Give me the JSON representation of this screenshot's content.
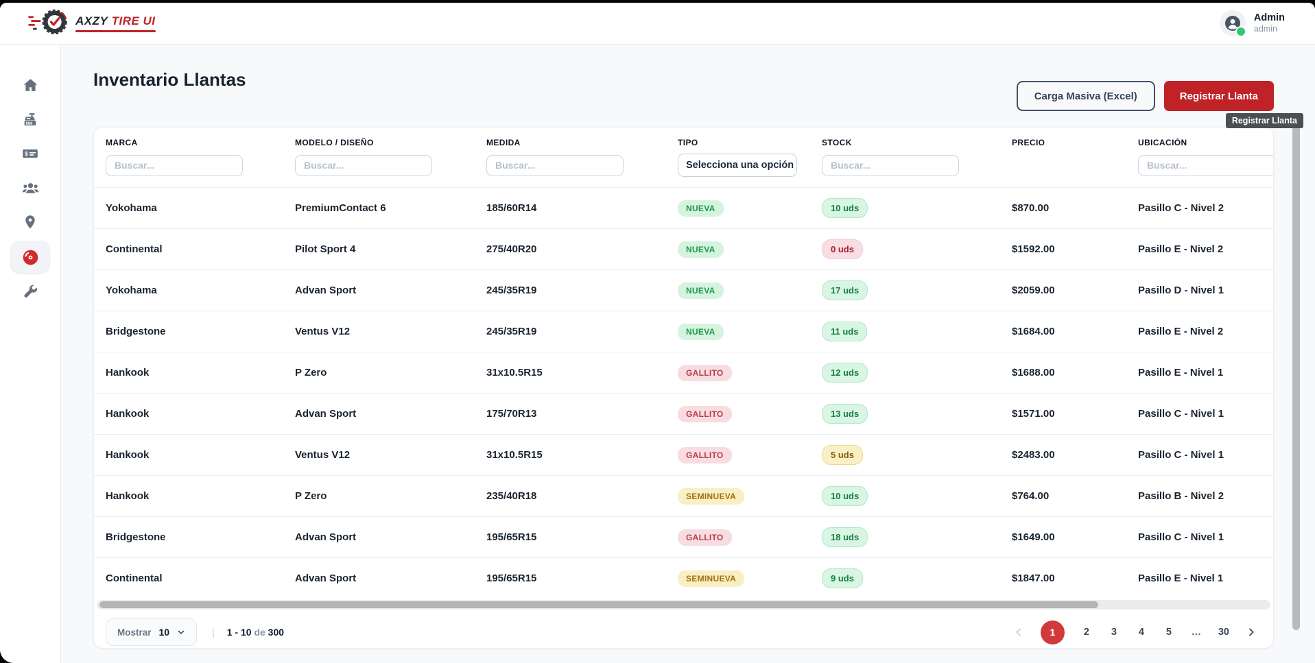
{
  "brand": {
    "name_dark": "AXZY",
    "name_red": "TIRE UI"
  },
  "user": {
    "name": "Admin",
    "role": "admin"
  },
  "page": {
    "title": "Inventario Llantas"
  },
  "toolbar": {
    "bulk_upload_label": "Carga Masiva (Excel)",
    "register_label": "Registrar Llanta",
    "tooltip": "Registrar Llanta"
  },
  "sidebar": {
    "items": [
      {
        "icon": "home-icon",
        "active": false
      },
      {
        "icon": "cash-register-icon",
        "active": false
      },
      {
        "icon": "billing-check-icon",
        "active": false
      },
      {
        "icon": "customers-icon",
        "active": false
      },
      {
        "icon": "location-pin-icon",
        "active": false
      },
      {
        "icon": "tire-icon",
        "active": true
      },
      {
        "icon": "tools-wrench-icon",
        "active": false
      }
    ]
  },
  "table": {
    "columns": [
      {
        "key": "marca",
        "label": "MARCA",
        "filter": "text",
        "placeholder": "Buscar..."
      },
      {
        "key": "modelo",
        "label": "MODELO / DISEÑO",
        "filter": "text",
        "placeholder": "Buscar..."
      },
      {
        "key": "medida",
        "label": "MEDIDA",
        "filter": "text",
        "placeholder": "Buscar..."
      },
      {
        "key": "tipo",
        "label": "TIPO",
        "filter": "select",
        "placeholder": "Selecciona una opción"
      },
      {
        "key": "stock",
        "label": "STOCK",
        "filter": "text",
        "placeholder": "Buscar..."
      },
      {
        "key": "precio",
        "label": "PRECIO",
        "filter": "none",
        "placeholder": ""
      },
      {
        "key": "ubicacion",
        "label": "UBICACIÓN",
        "filter": "text-wide",
        "placeholder": "Buscar..."
      }
    ],
    "rows": [
      {
        "marca": "Yokohama",
        "modelo": "PremiumContact 6",
        "medida": "185/60R14",
        "tipo": {
          "label": "NUEVA",
          "variant": "green"
        },
        "stock": {
          "label": "10 uds",
          "variant": "green"
        },
        "precio": "$870.00",
        "ubicacion": "Pasillo C - Nivel 2"
      },
      {
        "marca": "Continental",
        "modelo": "Pilot Sport 4",
        "medida": "275/40R20",
        "tipo": {
          "label": "NUEVA",
          "variant": "green"
        },
        "stock": {
          "label": "0 uds",
          "variant": "red"
        },
        "precio": "$1592.00",
        "ubicacion": "Pasillo E - Nivel 2"
      },
      {
        "marca": "Yokohama",
        "modelo": "Advan Sport",
        "medida": "245/35R19",
        "tipo": {
          "label": "NUEVA",
          "variant": "green"
        },
        "stock": {
          "label": "17 uds",
          "variant": "green"
        },
        "precio": "$2059.00",
        "ubicacion": "Pasillo D - Nivel 1"
      },
      {
        "marca": "Bridgestone",
        "modelo": "Ventus V12",
        "medida": "245/35R19",
        "tipo": {
          "label": "NUEVA",
          "variant": "green"
        },
        "stock": {
          "label": "11 uds",
          "variant": "green"
        },
        "precio": "$1684.00",
        "ubicacion": "Pasillo E - Nivel 2"
      },
      {
        "marca": "Hankook",
        "modelo": "P Zero",
        "medida": "31x10.5R15",
        "tipo": {
          "label": "GALLITO",
          "variant": "pink"
        },
        "stock": {
          "label": "12 uds",
          "variant": "green"
        },
        "precio": "$1688.00",
        "ubicacion": "Pasillo E - Nivel 1"
      },
      {
        "marca": "Hankook",
        "modelo": "Advan Sport",
        "medida": "175/70R13",
        "tipo": {
          "label": "GALLITO",
          "variant": "pink"
        },
        "stock": {
          "label": "13 uds",
          "variant": "green"
        },
        "precio": "$1571.00",
        "ubicacion": "Pasillo C - Nivel 1"
      },
      {
        "marca": "Hankook",
        "modelo": "Ventus V12",
        "medida": "31x10.5R15",
        "tipo": {
          "label": "GALLITO",
          "variant": "pink"
        },
        "stock": {
          "label": "5 uds",
          "variant": "yellow"
        },
        "precio": "$2483.00",
        "ubicacion": "Pasillo C - Nivel 1"
      },
      {
        "marca": "Hankook",
        "modelo": "P Zero",
        "medida": "235/40R18",
        "tipo": {
          "label": "SEMINUEVA",
          "variant": "yellow"
        },
        "stock": {
          "label": "10 uds",
          "variant": "green"
        },
        "precio": "$764.00",
        "ubicacion": "Pasillo B - Nivel 2"
      },
      {
        "marca": "Bridgestone",
        "modelo": "Advan Sport",
        "medida": "195/65R15",
        "tipo": {
          "label": "GALLITO",
          "variant": "pink"
        },
        "stock": {
          "label": "18 uds",
          "variant": "green"
        },
        "precio": "$1649.00",
        "ubicacion": "Pasillo C - Nivel 1"
      },
      {
        "marca": "Continental",
        "modelo": "Advan Sport",
        "medida": "195/65R15",
        "tipo": {
          "label": "SEMINUEVA",
          "variant": "yellow"
        },
        "stock": {
          "label": "9 uds",
          "variant": "green"
        },
        "precio": "$1847.00",
        "ubicacion": "Pasillo E - Nivel 1"
      }
    ]
  },
  "pagination": {
    "show_label": "Mostrar",
    "page_size": "10",
    "divider": "|",
    "range": "1 - 10",
    "of_label": "de",
    "total": "300",
    "pages": [
      {
        "label": "1",
        "active": true
      },
      {
        "label": "2"
      },
      {
        "label": "3"
      },
      {
        "label": "4"
      },
      {
        "label": "5"
      },
      {
        "label": "…",
        "ellipsis": true
      },
      {
        "label": "30"
      }
    ]
  },
  "colors": {
    "brand_red": "#c02127",
    "primary_button": "#bf2227",
    "pagination_active": "#d13a3a",
    "badge_green_text": "#189a4a",
    "badge_pink_text": "#bd3a45",
    "badge_yellow_text": "#a36f0b",
    "stock_red_text": "#a31f31",
    "status_online": "#2ecc71"
  }
}
